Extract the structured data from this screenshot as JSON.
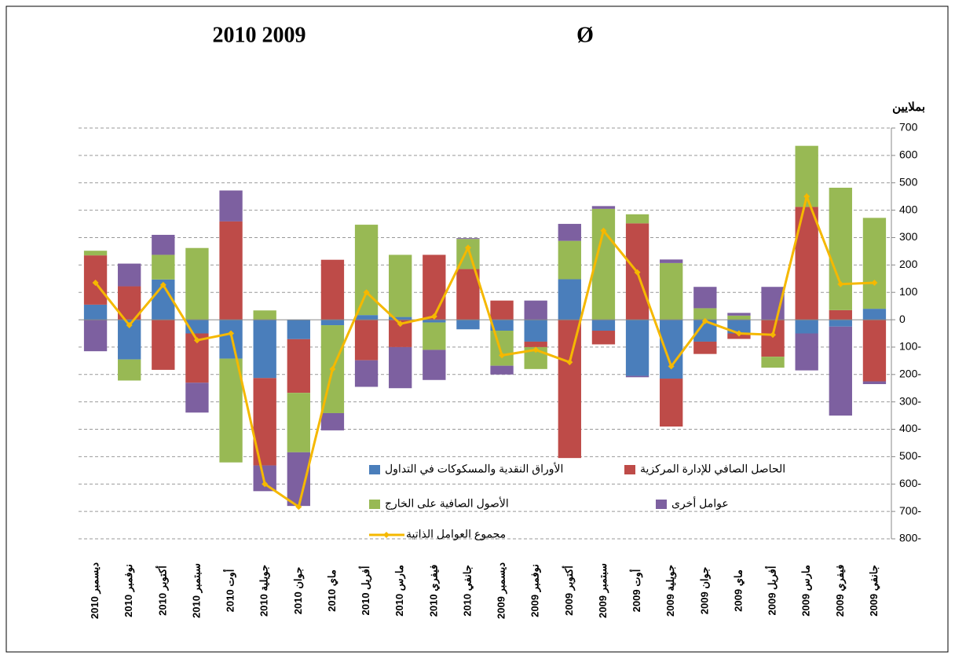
{
  "chart_data": {
    "type": "bar",
    "title": "2010   2009",
    "subtitle": "Ø",
    "y_label": "بملايين",
    "categories": [
      "ديسمبر 2010",
      "نوفمبر 2010",
      "أكتوبر 2010",
      "سبتمبر 2010",
      "أوت 2010",
      "جويلية 2010",
      "جوان 2010",
      "ماي 2010",
      "أفريل 2010",
      "مارس 2010",
      "فيفري 2010",
      "جانفي 2010",
      "ديسمبر 2009",
      "نوفمبر 2009",
      "أكتوبر 2009",
      "سبتمبر 2009",
      "أوت 2009",
      "جويلية 2009",
      "جوان 2009",
      "ماي 2009",
      "أفريل 2009",
      "مارس 2009",
      "فيفري 2009",
      "جانفي 2009"
    ],
    "series": [
      {
        "name": "الأوراق النقدية والمسكوكات في التداول",
        "color": "#4a7ebb",
        "values": [
          55,
          -145,
          147,
          -50,
          -142,
          -213,
          -71,
          -20,
          17,
          10,
          -10,
          -35,
          -40,
          -80,
          148,
          -40,
          -205,
          -215,
          -80,
          -50,
          0,
          -50,
          -25,
          40
        ]
      },
      {
        "name": "الحاصل الصافي للإدارة المركزية",
        "color": "#be4b48",
        "values": [
          180,
          122,
          -183,
          -180,
          359,
          -319,
          -196,
          219,
          -148,
          -100,
          237,
          185,
          70,
          -20,
          -505,
          -50,
          352,
          -175,
          -45,
          -20,
          -135,
          412,
          35,
          -225
        ]
      },
      {
        "name": "الأصول الصافية على الخارج",
        "color": "#98b954",
        "values": [
          17,
          -77,
          90,
          262,
          -379,
          34,
          -217,
          -321,
          330,
          227,
          -100,
          110,
          -128,
          -80,
          140,
          405,
          33,
          207,
          42,
          15,
          -40,
          223,
          447,
          332
        ]
      },
      {
        "name": "عوامل أخرى",
        "color": "#7d60a0",
        "values": [
          -115,
          83,
          73,
          -109,
          113,
          -94,
          -196,
          -63,
          -97,
          -150,
          -110,
          3,
          -32,
          70,
          62,
          10,
          -5,
          13,
          78,
          10,
          120,
          -135,
          -325,
          -10
        ]
      },
      {
        "name": "مجموع العوامل الذاتية",
        "color": "#f5b800",
        "type": "line",
        "values": [
          135,
          -20,
          127,
          -75,
          -50,
          -600,
          -683,
          -180,
          100,
          -15,
          12,
          263,
          -130,
          -110,
          -155,
          325,
          173,
          -170,
          -5,
          -50,
          -55,
          450,
          130,
          135
        ]
      }
    ],
    "ylim": [
      -800,
      700
    ],
    "yticks": [
      700,
      600,
      500,
      400,
      300,
      200,
      100,
      0,
      {
        "value": -100,
        "label": "100-"
      },
      {
        "value": -200,
        "label": "200-"
      },
      {
        "value": -300,
        "label": "300-"
      },
      {
        "value": -400,
        "label": "400-"
      },
      {
        "value": -500,
        "label": "500-"
      },
      {
        "value": -600,
        "label": "600-"
      },
      {
        "value": -700,
        "label": "700-"
      },
      {
        "value": -800,
        "label": "800-"
      }
    ],
    "grid": true
  }
}
